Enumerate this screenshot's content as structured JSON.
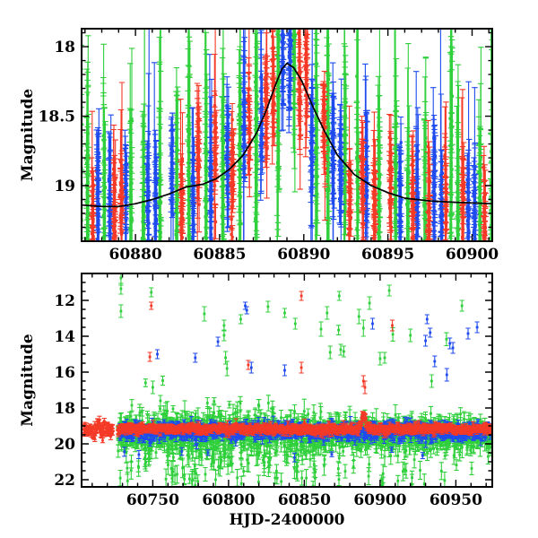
{
  "figure": {
    "background": "#ffffff",
    "frame_color": "#000000",
    "series_colors": {
      "red": "#f53927",
      "green": "#30d03c",
      "blue": "#1f4bee"
    }
  },
  "chart_data": [
    {
      "type": "scatter",
      "panel": "top",
      "title": "",
      "xlabel": "",
      "ylabel": "Magnitude",
      "xlim": [
        60876.8,
        60901.2
      ],
      "ylim": [
        19.4,
        17.87
      ],
      "y_axis_inverted": true,
      "grid": false,
      "legend": "none",
      "xticks": {
        "major": [
          60880,
          60885,
          60890,
          60895,
          60900
        ],
        "labels": [
          "60880",
          "60885",
          "60890",
          "60895",
          "60900"
        ],
        "minor_step": 1
      },
      "yticks": {
        "major": [
          18,
          18.5,
          19
        ],
        "labels": [
          "18",
          "18.5",
          "19"
        ],
        "minor_step": 0.1
      },
      "series": [
        {
          "name": "red-band photometry",
          "color_key": "red"
        },
        {
          "name": "green-band photometry",
          "color_key": "green"
        },
        {
          "name": "blue-band photometry",
          "color_key": "blue"
        }
      ],
      "model_curve": {
        "color": "#000000",
        "peak": {
          "t": 60889.0,
          "mag": 18.12
        },
        "baseline_mag": 19.14,
        "points": [
          [
            60876.8,
            19.14
          ],
          [
            60878,
            19.15
          ],
          [
            60879,
            19.15
          ],
          [
            60880,
            19.13
          ],
          [
            60881,
            19.1
          ],
          [
            60882,
            19.06
          ],
          [
            60883,
            19.01
          ],
          [
            60884,
            18.99
          ],
          [
            60884.8,
            18.95
          ],
          [
            60885.6,
            18.88
          ],
          [
            60886.4,
            18.78
          ],
          [
            60887.2,
            18.62
          ],
          [
            60887.8,
            18.45
          ],
          [
            60888.3,
            18.28
          ],
          [
            60888.7,
            18.16
          ],
          [
            60889.0,
            18.12
          ],
          [
            60889.4,
            18.15
          ],
          [
            60889.9,
            18.25
          ],
          [
            60890.5,
            18.42
          ],
          [
            60891.2,
            18.6
          ],
          [
            60892,
            18.78
          ],
          [
            60893,
            18.92
          ],
          [
            60894,
            19.0
          ],
          [
            60895,
            19.05
          ],
          [
            60896,
            19.09
          ],
          [
            60897.5,
            19.11
          ],
          [
            60899,
            19.12
          ],
          [
            60901.2,
            19.13
          ]
        ]
      },
      "nightly_clusters": {
        "night_start": 60876,
        "night_end": 60901,
        "slot_offsets": [
          0.18,
          0.46,
          0.74
        ],
        "points_per_cluster": [
          22,
          32
        ],
        "mag_sigma": {
          "red": 0.18,
          "blue": 0.18,
          "green": 0.26
        },
        "mag_clamp": [
          17.9,
          19.44
        ],
        "err_base": {
          "red": 0.07,
          "blue": 0.08,
          "green": 0.16
        },
        "err_scale": {
          "red": 0.1,
          "blue": 0.14,
          "green": 0.28
        },
        "seed": 1234567
      }
    },
    {
      "type": "scatter",
      "panel": "bottom",
      "title": "",
      "xlabel": "HJD-2400000",
      "ylabel": "Magnitude",
      "xlim": [
        60703,
        60974
      ],
      "ylim": [
        22.4,
        10.5
      ],
      "y_axis_inverted": true,
      "grid": false,
      "legend": "none",
      "xticks": {
        "major": [
          60750,
          60800,
          60850,
          60900,
          60950
        ],
        "labels": [
          "60750",
          "60800",
          "60850",
          "60900",
          "60950"
        ],
        "minor_step": 10
      },
      "yticks": {
        "major": [
          12,
          14,
          16,
          18,
          20,
          22
        ],
        "labels": [
          "12",
          "14",
          "16",
          "18",
          "20",
          "22"
        ],
        "minor_step": 0.5
      },
      "baseline_mag": 19.2,
      "event_bump": {
        "t0": 60889.3,
        "depth": 0.82,
        "sigma_days": 1.35
      },
      "red_only_range": [
        60705,
        60723
      ],
      "band_range": [
        60727,
        60972
      ],
      "cluster_params": {
        "n_red": 6,
        "n_blue": 5,
        "n_green": 6,
        "sigma": {
          "red": 0.1,
          "blue": 0.2,
          "green": 0.38
        },
        "green_tail_max_mag": 22.35,
        "seed": 987654
      },
      "outliers": [
        {
          "c": "green",
          "t": 60729,
          "m": 10.75,
          "e": 0.4
        },
        {
          "c": "green",
          "t": 60729,
          "m": 11.35,
          "e": 0.3
        },
        {
          "c": "green",
          "t": 60729,
          "m": 12.6,
          "e": 0.35
        },
        {
          "c": "green",
          "t": 60749,
          "m": 11.55,
          "e": 0.25
        },
        {
          "c": "green",
          "t": 60750,
          "m": 16.85,
          "e": 0.35
        },
        {
          "c": "green",
          "t": 60755,
          "m": 17.6,
          "e": 0.3
        },
        {
          "c": "green",
          "t": 60784,
          "m": 12.75,
          "e": 0.4
        },
        {
          "c": "green",
          "t": 60797,
          "m": 13.4,
          "e": 0.3
        },
        {
          "c": "green",
          "t": 60797,
          "m": 13.95,
          "e": 0.3
        },
        {
          "c": "green",
          "t": 60798,
          "m": 15.2,
          "e": 0.35
        },
        {
          "c": "green",
          "t": 60799,
          "m": 15.8,
          "e": 0.4
        },
        {
          "c": "green",
          "t": 60808,
          "m": 13.05,
          "e": 0.25
        },
        {
          "c": "green",
          "t": 60826,
          "m": 12.35,
          "e": 0.3
        },
        {
          "c": "green",
          "t": 60837,
          "m": 12.7,
          "e": 0.25
        },
        {
          "c": "green",
          "t": 60844,
          "m": 13.3,
          "e": 0.3
        },
        {
          "c": "green",
          "t": 60861,
          "m": 13.6,
          "e": 0.4
        },
        {
          "c": "green",
          "t": 60865,
          "m": 12.7,
          "e": 0.35
        },
        {
          "c": "green",
          "t": 60867,
          "m": 14.9,
          "e": 0.35
        },
        {
          "c": "green",
          "t": 60873,
          "m": 11.75,
          "e": 0.25
        },
        {
          "c": "green",
          "t": 60874,
          "m": 14.75,
          "e": 0.3
        },
        {
          "c": "green",
          "t": 60876,
          "m": 14.85,
          "e": 0.3
        },
        {
          "c": "green",
          "t": 60886,
          "m": 12.9,
          "e": 0.4
        },
        {
          "c": "green",
          "t": 60889,
          "m": 13.55,
          "e": 0.45
        },
        {
          "c": "green",
          "t": 60893,
          "m": 12.15,
          "e": 0.35
        },
        {
          "c": "green",
          "t": 60900,
          "m": 15.25,
          "e": 0.35
        },
        {
          "c": "green",
          "t": 60903,
          "m": 15.2,
          "e": 0.3
        },
        {
          "c": "green",
          "t": 60906,
          "m": 11.45,
          "e": 0.3
        },
        {
          "c": "green",
          "t": 60920,
          "m": 13.95,
          "e": 0.35
        },
        {
          "c": "green",
          "t": 60934,
          "m": 16.5,
          "e": 0.35
        },
        {
          "c": "green",
          "t": 60954,
          "m": 12.3,
          "e": 0.3
        },
        {
          "c": "blue",
          "t": 60753,
          "m": 15.0,
          "e": 0.25
        },
        {
          "c": "blue",
          "t": 60778,
          "m": 15.2,
          "e": 0.25
        },
        {
          "c": "blue",
          "t": 60793,
          "m": 14.3,
          "e": 0.25
        },
        {
          "c": "blue",
          "t": 60811,
          "m": 12.3,
          "e": 0.2
        },
        {
          "c": "blue",
          "t": 60812,
          "m": 12.55,
          "e": 0.2
        },
        {
          "c": "blue",
          "t": 60815,
          "m": 15.75,
          "e": 0.3
        },
        {
          "c": "blue",
          "t": 60837,
          "m": 15.9,
          "e": 0.3
        },
        {
          "c": "blue",
          "t": 60895,
          "m": 13.3,
          "e": 0.3
        },
        {
          "c": "blue",
          "t": 60930,
          "m": 14.25,
          "e": 0.3
        },
        {
          "c": "blue",
          "t": 60931,
          "m": 13.05,
          "e": 0.25
        },
        {
          "c": "blue",
          "t": 60933,
          "m": 13.8,
          "e": 0.25
        },
        {
          "c": "blue",
          "t": 60936,
          "m": 15.4,
          "e": 0.3
        },
        {
          "c": "blue",
          "t": 60944,
          "m": 16.15,
          "e": 0.35
        },
        {
          "c": "blue",
          "t": 60946,
          "m": 14.4,
          "e": 0.3
        },
        {
          "c": "blue",
          "t": 60948,
          "m": 14.65,
          "e": 0.3
        },
        {
          "c": "blue",
          "t": 60958,
          "m": 13.85,
          "e": 0.3
        },
        {
          "c": "blue",
          "t": 60964,
          "m": 13.5,
          "e": 0.3
        },
        {
          "c": "red",
          "t": 60748,
          "m": 15.15,
          "e": 0.25
        },
        {
          "c": "red",
          "t": 60749,
          "m": 12.3,
          "e": 0.2
        },
        {
          "c": "red",
          "t": 60813,
          "m": 15.6,
          "e": 0.25
        },
        {
          "c": "red",
          "t": 60848,
          "m": 11.75,
          "e": 0.25
        },
        {
          "c": "red",
          "t": 60848,
          "m": 15.75,
          "e": 0.3
        },
        {
          "c": "red",
          "t": 60889,
          "m": 16.5,
          "e": 0.3
        },
        {
          "c": "red",
          "t": 60890,
          "m": 16.85,
          "e": 0.35
        },
        {
          "c": "red",
          "t": 60908,
          "m": 13.4,
          "e": 0.3
        }
      ]
    }
  ]
}
